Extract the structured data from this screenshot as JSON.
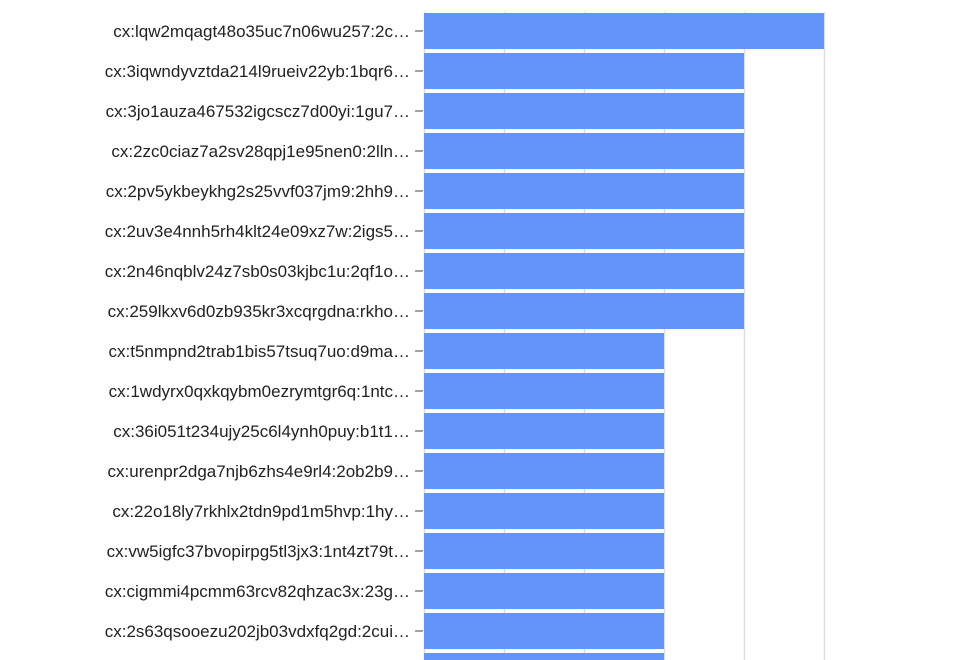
{
  "chart_data": {
    "type": "bar",
    "orientation": "horizontal",
    "categories": [
      "cx:lqw2mqagt48o35uc7n06wu257:2c…",
      "cx:3iqwndyvztda214l9rueiv22yb:1bqr6…",
      "cx:3jo1auza467532igcscz7d00yi:1gu7…",
      "cx:2zc0ciaz7a2sv28qpj1e95nen0:2lln…",
      "cx:2pv5ykbeykhg2s25vvf037jm9:2hh9…",
      "cx:2uv3e4nnh5rh4klt24e09xz7w:2igs5…",
      "cx:2n46nqblv24z7sb0s03kjbc1u:2qf1o…",
      "cx:259lkxv6d0zb935kr3xcqrgdna:rkho…",
      "cx:t5nmpnd2trab1bis57tsuq7uo:d9ma…",
      "cx:1wdyrx0qxkqybm0ezrymtgr6q:1ntc…",
      "cx:36i051t234ujy25c6l4ynh0puy:b1t1…",
      "cx:urenpr2dga7njb6zhs4e9rl4:2ob2b9…",
      "cx:22o18ly7rkhlx2tdn9pd1m5hvp:1hy…",
      "cx:vw5igfc37bvopirpg5tl3jx3:1nt4zt79t…",
      "cx:cigmmi4pcmm63rcv82qhzac3x:23g…",
      "cx:2s63qsooezu202jb03vdxfq2gd:2cui…",
      ""
    ],
    "values": [
      5,
      4,
      4,
      4,
      4,
      4,
      4,
      4,
      3,
      3,
      3,
      3,
      3,
      3,
      3,
      3,
      3
    ],
    "xlim": [
      0,
      5
    ],
    "grid": true,
    "colors": {
      "bar": "#6394f9",
      "grid": "#dddddd",
      "tick": "#444444"
    }
  }
}
